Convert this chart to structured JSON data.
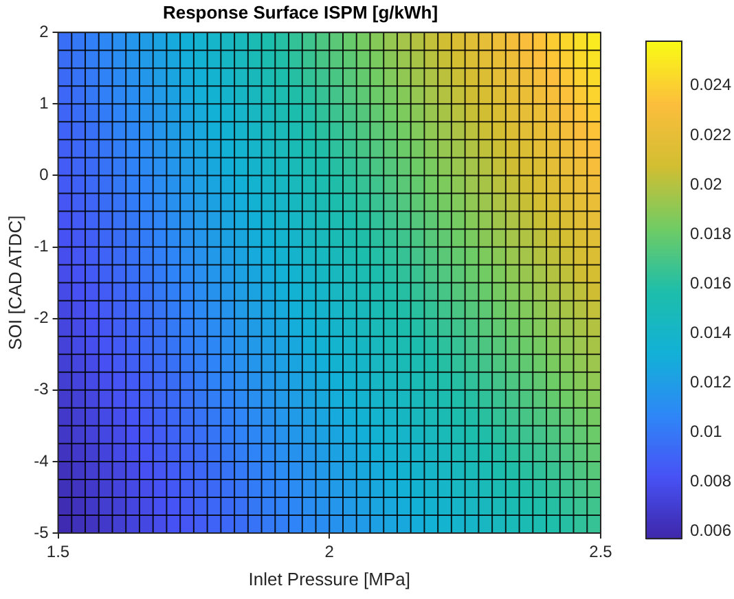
{
  "chart_data": {
    "type": "heatmap",
    "title": "Response Surface ISPM [g/kWh]",
    "xlabel": "Inlet Pressure [MPa]",
    "ylabel": "SOI [CAD ATDC]",
    "xlim": [
      1.5,
      2.5
    ],
    "xticks": [
      1.5,
      2,
      2.5
    ],
    "ylim": [
      -5,
      2
    ],
    "yticks": [
      -5,
      -4,
      -3,
      -2,
      -1,
      0,
      1,
      2
    ],
    "clim": [
      0.0057,
      0.0258
    ],
    "grid": true,
    "cticks": [
      0.006,
      0.008,
      0.01,
      0.012,
      0.014,
      0.016,
      0.018,
      0.02,
      0.022,
      0.024
    ],
    "cells": [
      [
        0.0096,
        0.01,
        0.0104,
        0.0108,
        0.0112,
        0.0116,
        0.012,
        0.0124,
        0.0128,
        0.0132,
        0.0136,
        0.014,
        0.0144,
        0.0148,
        0.0152,
        0.0156,
        0.016,
        0.0164,
        0.0168,
        0.0172,
        0.0176,
        0.018,
        0.0184,
        0.0188,
        0.0192,
        0.0196,
        0.02,
        0.0204,
        0.0208,
        0.0212,
        0.0216,
        0.022,
        0.0224,
        0.0228,
        0.0232,
        0.0235,
        0.0239,
        0.0243,
        0.0247,
        0.0251
      ],
      [
        0.0095,
        0.0099,
        0.0103,
        0.0107,
        0.0111,
        0.0115,
        0.0119,
        0.0122,
        0.0126,
        0.013,
        0.0134,
        0.0138,
        0.0142,
        0.0146,
        0.015,
        0.0154,
        0.0158,
        0.0162,
        0.0166,
        0.017,
        0.0174,
        0.0177,
        0.0181,
        0.0185,
        0.0189,
        0.0193,
        0.0197,
        0.0201,
        0.0205,
        0.0209,
        0.0213,
        0.0217,
        0.0221,
        0.0225,
        0.0229,
        0.0233,
        0.0236,
        0.024,
        0.0244,
        0.0248
      ],
      [
        0.0094,
        0.0098,
        0.0101,
        0.0105,
        0.0109,
        0.0113,
        0.0117,
        0.0121,
        0.0125,
        0.0129,
        0.0132,
        0.0136,
        0.014,
        0.0144,
        0.0148,
        0.0152,
        0.0156,
        0.016,
        0.0164,
        0.0167,
        0.0171,
        0.0175,
        0.0179,
        0.0183,
        0.0187,
        0.0191,
        0.0195,
        0.0198,
        0.0202,
        0.0206,
        0.021,
        0.0214,
        0.0218,
        0.0222,
        0.0226,
        0.023,
        0.0233,
        0.0237,
        0.0241,
        0.0245
      ],
      [
        0.0092,
        0.0096,
        0.01,
        0.0104,
        0.0108,
        0.0111,
        0.0115,
        0.0119,
        0.0123,
        0.0127,
        0.0131,
        0.0134,
        0.0138,
        0.0142,
        0.0146,
        0.015,
        0.0154,
        0.0158,
        0.0161,
        0.0165,
        0.0169,
        0.0173,
        0.0177,
        0.0181,
        0.0184,
        0.0188,
        0.0192,
        0.0196,
        0.02,
        0.0204,
        0.0207,
        0.0211,
        0.0215,
        0.0219,
        0.0223,
        0.0227,
        0.023,
        0.0234,
        0.0238,
        0.0242
      ],
      [
        0.0091,
        0.0095,
        0.0099,
        0.0102,
        0.0106,
        0.011,
        0.0114,
        0.0117,
        0.0121,
        0.0125,
        0.0129,
        0.0133,
        0.0136,
        0.014,
        0.0144,
        0.0148,
        0.0152,
        0.0155,
        0.0159,
        0.0163,
        0.0167,
        0.017,
        0.0174,
        0.0178,
        0.0182,
        0.0186,
        0.0189,
        0.0193,
        0.0197,
        0.0201,
        0.0205,
        0.0208,
        0.0212,
        0.0216,
        0.022,
        0.0223,
        0.0227,
        0.0231,
        0.0235,
        0.0239
      ],
      [
        0.009,
        0.0093,
        0.0097,
        0.0101,
        0.0105,
        0.0108,
        0.0112,
        0.0116,
        0.012,
        0.0123,
        0.0127,
        0.0131,
        0.0134,
        0.0138,
        0.0142,
        0.0146,
        0.0149,
        0.0153,
        0.0157,
        0.0161,
        0.0164,
        0.0168,
        0.0172,
        0.0176,
        0.0179,
        0.0183,
        0.0187,
        0.0191,
        0.0194,
        0.0198,
        0.0202,
        0.0206,
        0.0209,
        0.0213,
        0.0217,
        0.0221,
        0.0224,
        0.0228,
        0.0232,
        0.0235
      ],
      [
        0.0088,
        0.0092,
        0.0096,
        0.0099,
        0.0103,
        0.0107,
        0.011,
        0.0114,
        0.0118,
        0.0122,
        0.0125,
        0.0129,
        0.0133,
        0.0136,
        0.014,
        0.0144,
        0.0147,
        0.0151,
        0.0155,
        0.0158,
        0.0162,
        0.0166,
        0.017,
        0.0173,
        0.0177,
        0.0181,
        0.0184,
        0.0188,
        0.0192,
        0.0195,
        0.0199,
        0.0203,
        0.0206,
        0.021,
        0.0214,
        0.0218,
        0.0221,
        0.0225,
        0.0229,
        0.0232
      ],
      [
        0.0087,
        0.0091,
        0.0094,
        0.0098,
        0.0101,
        0.0105,
        0.0109,
        0.0112,
        0.0116,
        0.012,
        0.0123,
        0.0127,
        0.0131,
        0.0134,
        0.0138,
        0.0142,
        0.0145,
        0.0149,
        0.0153,
        0.0156,
        0.016,
        0.0163,
        0.0167,
        0.0171,
        0.0174,
        0.0178,
        0.0182,
        0.0185,
        0.0189,
        0.0193,
        0.0196,
        0.02,
        0.0204,
        0.0207,
        0.0211,
        0.0214,
        0.0218,
        0.0222,
        0.0225,
        0.0229
      ],
      [
        0.0086,
        0.0089,
        0.0093,
        0.0096,
        0.01,
        0.0104,
        0.0107,
        0.0111,
        0.0114,
        0.0118,
        0.0122,
        0.0125,
        0.0129,
        0.0132,
        0.0136,
        0.014,
        0.0143,
        0.0147,
        0.015,
        0.0154,
        0.0158,
        0.0161,
        0.0165,
        0.0168,
        0.0172,
        0.0176,
        0.0179,
        0.0183,
        0.0186,
        0.019,
        0.0194,
        0.0197,
        0.0201,
        0.0204,
        0.0208,
        0.0212,
        0.0215,
        0.0219,
        0.0222,
        0.0226
      ],
      [
        0.0084,
        0.0088,
        0.0091,
        0.0095,
        0.0098,
        0.0102,
        0.0106,
        0.0109,
        0.0113,
        0.0116,
        0.012,
        0.0123,
        0.0127,
        0.013,
        0.0134,
        0.0138,
        0.0141,
        0.0145,
        0.0148,
        0.0152,
        0.0155,
        0.0159,
        0.0162,
        0.0166,
        0.0169,
        0.0173,
        0.0177,
        0.018,
        0.0184,
        0.0187,
        0.0191,
        0.0194,
        0.0198,
        0.0201,
        0.0205,
        0.0209,
        0.0212,
        0.0216,
        0.0219,
        0.0223
      ],
      [
        0.0083,
        0.0086,
        0.009,
        0.0093,
        0.0097,
        0.01,
        0.0104,
        0.0107,
        0.0111,
        0.0114,
        0.0118,
        0.0121,
        0.0125,
        0.0128,
        0.0132,
        0.0135,
        0.0139,
        0.0142,
        0.0146,
        0.0149,
        0.0153,
        0.0156,
        0.016,
        0.0163,
        0.0167,
        0.017,
        0.0174,
        0.0177,
        0.0181,
        0.0184,
        0.0188,
        0.0191,
        0.0195,
        0.0198,
        0.0202,
        0.0205,
        0.0209,
        0.0212,
        0.0216,
        0.022
      ],
      [
        0.0082,
        0.0085,
        0.0088,
        0.0092,
        0.0095,
        0.0099,
        0.0102,
        0.0106,
        0.0109,
        0.0113,
        0.0116,
        0.012,
        0.0123,
        0.0126,
        0.013,
        0.0133,
        0.0137,
        0.014,
        0.0144,
        0.0147,
        0.0151,
        0.0154,
        0.0158,
        0.0161,
        0.0164,
        0.0168,
        0.0171,
        0.0175,
        0.0178,
        0.0182,
        0.0185,
        0.0189,
        0.0192,
        0.0196,
        0.0199,
        0.0202,
        0.0206,
        0.0209,
        0.0213,
        0.0216
      ],
      [
        0.008,
        0.0084,
        0.0087,
        0.009,
        0.0094,
        0.0097,
        0.0101,
        0.0104,
        0.0107,
        0.0111,
        0.0114,
        0.0118,
        0.0121,
        0.0124,
        0.0128,
        0.0131,
        0.0135,
        0.0138,
        0.0142,
        0.0145,
        0.0148,
        0.0152,
        0.0155,
        0.0159,
        0.0162,
        0.0165,
        0.0169,
        0.0172,
        0.0176,
        0.0179,
        0.0182,
        0.0186,
        0.0189,
        0.0193,
        0.0196,
        0.02,
        0.0203,
        0.0206,
        0.021,
        0.0213
      ],
      [
        0.0079,
        0.0082,
        0.0086,
        0.0089,
        0.0092,
        0.0096,
        0.0099,
        0.0102,
        0.0106,
        0.0109,
        0.0112,
        0.0116,
        0.0119,
        0.0123,
        0.0126,
        0.0129,
        0.0133,
        0.0136,
        0.0139,
        0.0143,
        0.0146,
        0.0149,
        0.0153,
        0.0156,
        0.016,
        0.0163,
        0.0166,
        0.017,
        0.0173,
        0.0176,
        0.018,
        0.0183,
        0.0186,
        0.019,
        0.0193,
        0.0196,
        0.02,
        0.0203,
        0.0207,
        0.021
      ],
      [
        0.0078,
        0.0081,
        0.0084,
        0.0087,
        0.0091,
        0.0094,
        0.0097,
        0.0101,
        0.0104,
        0.0107,
        0.0111,
        0.0114,
        0.0117,
        0.0121,
        0.0124,
        0.0127,
        0.0131,
        0.0134,
        0.0137,
        0.014,
        0.0144,
        0.0147,
        0.015,
        0.0154,
        0.0157,
        0.016,
        0.0164,
        0.0167,
        0.017,
        0.0174,
        0.0177,
        0.018,
        0.0184,
        0.0187,
        0.019,
        0.0193,
        0.0197,
        0.02,
        0.0203,
        0.0207
      ],
      [
        0.0076,
        0.0079,
        0.0083,
        0.0086,
        0.0089,
        0.0092,
        0.0096,
        0.0099,
        0.0102,
        0.0106,
        0.0109,
        0.0112,
        0.0115,
        0.0119,
        0.0122,
        0.0125,
        0.0128,
        0.0132,
        0.0135,
        0.0138,
        0.0141,
        0.0145,
        0.0148,
        0.0151,
        0.0155,
        0.0158,
        0.0161,
        0.0164,
        0.0168,
        0.0171,
        0.0174,
        0.0177,
        0.0181,
        0.0184,
        0.0187,
        0.019,
        0.0194,
        0.0197,
        0.02,
        0.0204
      ],
      [
        0.0075,
        0.0078,
        0.0081,
        0.0084,
        0.0088,
        0.0091,
        0.0094,
        0.0097,
        0.0101,
        0.0104,
        0.0107,
        0.011,
        0.0113,
        0.0117,
        0.012,
        0.0123,
        0.0126,
        0.013,
        0.0133,
        0.0136,
        0.0139,
        0.0142,
        0.0146,
        0.0149,
        0.0152,
        0.0155,
        0.0159,
        0.0162,
        0.0165,
        0.0168,
        0.0171,
        0.0175,
        0.0178,
        0.0181,
        0.0184,
        0.0187,
        0.0191,
        0.0194,
        0.0197,
        0.02
      ],
      [
        0.0073,
        0.0077,
        0.008,
        0.0083,
        0.0086,
        0.0089,
        0.0093,
        0.0096,
        0.0099,
        0.0102,
        0.0105,
        0.0108,
        0.0112,
        0.0115,
        0.0118,
        0.0121,
        0.0124,
        0.0127,
        0.0131,
        0.0134,
        0.0137,
        0.014,
        0.0143,
        0.0146,
        0.015,
        0.0153,
        0.0156,
        0.0159,
        0.0162,
        0.0165,
        0.0169,
        0.0172,
        0.0175,
        0.0178,
        0.0181,
        0.0184,
        0.0188,
        0.0191,
        0.0194,
        0.0197
      ],
      [
        0.0072,
        0.0075,
        0.0078,
        0.0081,
        0.0085,
        0.0088,
        0.0091,
        0.0094,
        0.0097,
        0.01,
        0.0103,
        0.0106,
        0.011,
        0.0113,
        0.0116,
        0.0119,
        0.0122,
        0.0125,
        0.0128,
        0.0131,
        0.0135,
        0.0138,
        0.0141,
        0.0144,
        0.0147,
        0.015,
        0.0153,
        0.0156,
        0.016,
        0.0163,
        0.0166,
        0.0169,
        0.0172,
        0.0175,
        0.0178,
        0.0181,
        0.0185,
        0.0188,
        0.0191,
        0.0194
      ],
      [
        0.0071,
        0.0074,
        0.0077,
        0.008,
        0.0083,
        0.0086,
        0.0089,
        0.0092,
        0.0095,
        0.0098,
        0.0102,
        0.0105,
        0.0108,
        0.0111,
        0.0114,
        0.0117,
        0.012,
        0.0123,
        0.0126,
        0.0129,
        0.0132,
        0.0135,
        0.0138,
        0.0142,
        0.0145,
        0.0148,
        0.0151,
        0.0154,
        0.0157,
        0.016,
        0.0163,
        0.0166,
        0.0169,
        0.0172,
        0.0175,
        0.0178,
        0.0182,
        0.0185,
        0.0188,
        0.0191
      ],
      [
        0.0069,
        0.0072,
        0.0075,
        0.0079,
        0.0082,
        0.0085,
        0.0088,
        0.0091,
        0.0094,
        0.0097,
        0.01,
        0.0103,
        0.0106,
        0.0109,
        0.0112,
        0.0115,
        0.0118,
        0.0121,
        0.0124,
        0.0127,
        0.013,
        0.0133,
        0.0136,
        0.0139,
        0.0142,
        0.0145,
        0.0148,
        0.0151,
        0.0154,
        0.0157,
        0.016,
        0.0163,
        0.0166,
        0.0169,
        0.0172,
        0.0175,
        0.0179,
        0.0182,
        0.0185,
        0.0188
      ],
      [
        0.0068,
        0.0071,
        0.0074,
        0.0077,
        0.008,
        0.0083,
        0.0086,
        0.0089,
        0.0092,
        0.0095,
        0.0098,
        0.0101,
        0.0104,
        0.0107,
        0.011,
        0.0113,
        0.0116,
        0.0119,
        0.0122,
        0.0125,
        0.0128,
        0.0131,
        0.0134,
        0.0137,
        0.014,
        0.0143,
        0.0146,
        0.0149,
        0.0152,
        0.0155,
        0.0158,
        0.0161,
        0.0164,
        0.0167,
        0.017,
        0.0172,
        0.0175,
        0.0178,
        0.0181,
        0.0184
      ],
      [
        0.0067,
        0.007,
        0.0073,
        0.0076,
        0.0078,
        0.0081,
        0.0084,
        0.0087,
        0.009,
        0.0093,
        0.0096,
        0.0099,
        0.0102,
        0.0105,
        0.0108,
        0.0111,
        0.0114,
        0.0117,
        0.012,
        0.0123,
        0.0125,
        0.0128,
        0.0131,
        0.0134,
        0.0137,
        0.014,
        0.0143,
        0.0146,
        0.0149,
        0.0152,
        0.0155,
        0.0158,
        0.0161,
        0.0164,
        0.0167,
        0.0169,
        0.0172,
        0.0175,
        0.0178,
        0.0181
      ],
      [
        0.0065,
        0.0068,
        0.0071,
        0.0074,
        0.0077,
        0.008,
        0.0083,
        0.0086,
        0.0088,
        0.0091,
        0.0094,
        0.0097,
        0.01,
        0.0103,
        0.0106,
        0.0109,
        0.0112,
        0.0114,
        0.0117,
        0.012,
        0.0123,
        0.0126,
        0.0129,
        0.0132,
        0.0135,
        0.0138,
        0.014,
        0.0143,
        0.0146,
        0.0149,
        0.0152,
        0.0155,
        0.0158,
        0.0161,
        0.0164,
        0.0166,
        0.0169,
        0.0172,
        0.0175,
        0.0178
      ],
      [
        0.0064,
        0.0067,
        0.007,
        0.0073,
        0.0075,
        0.0078,
        0.0081,
        0.0084,
        0.0087,
        0.009,
        0.0092,
        0.0095,
        0.0098,
        0.0101,
        0.0104,
        0.0107,
        0.011,
        0.0112,
        0.0115,
        0.0118,
        0.0121,
        0.0124,
        0.0127,
        0.0129,
        0.0132,
        0.0135,
        0.0138,
        0.0141,
        0.0144,
        0.0146,
        0.0149,
        0.0152,
        0.0155,
        0.0158,
        0.0161,
        0.0163,
        0.0166,
        0.0169,
        0.0172,
        0.0175
      ],
      [
        0.0063,
        0.0065,
        0.0068,
        0.0071,
        0.0074,
        0.0077,
        0.0079,
        0.0082,
        0.0085,
        0.0088,
        0.0091,
        0.0093,
        0.0096,
        0.0099,
        0.0102,
        0.0105,
        0.0107,
        0.011,
        0.0113,
        0.0116,
        0.0119,
        0.0121,
        0.0124,
        0.0127,
        0.013,
        0.0133,
        0.0135,
        0.0138,
        0.0141,
        0.0144,
        0.0146,
        0.0149,
        0.0152,
        0.0155,
        0.0158,
        0.016,
        0.0163,
        0.0166,
        0.0169,
        0.0172
      ],
      [
        0.0061,
        0.0064,
        0.0067,
        0.007,
        0.0072,
        0.0075,
        0.0078,
        0.0081,
        0.0083,
        0.0086,
        0.0089,
        0.0092,
        0.0094,
        0.0097,
        0.01,
        0.0103,
        0.0105,
        0.0108,
        0.0111,
        0.0114,
        0.0116,
        0.0119,
        0.0122,
        0.0125,
        0.0127,
        0.013,
        0.0133,
        0.0135,
        0.0138,
        0.0141,
        0.0144,
        0.0146,
        0.0149,
        0.0152,
        0.0155,
        0.0157,
        0.016,
        0.0163,
        0.0166,
        0.0168
      ],
      [
        0.006,
        0.0063,
        0.0065,
        0.0068,
        0.0071,
        0.0074,
        0.0076,
        0.0079,
        0.0082,
        0.0084,
        0.0087,
        0.009,
        0.0092,
        0.0095,
        0.0098,
        0.0101,
        0.0103,
        0.0106,
        0.0109,
        0.0111,
        0.0114,
        0.0117,
        0.0119,
        0.0122,
        0.0125,
        0.0127,
        0.013,
        0.0133,
        0.0136,
        0.0138,
        0.0141,
        0.0144,
        0.0146,
        0.0149,
        0.0152,
        0.0154,
        0.0157,
        0.016,
        0.0163,
        0.0165
      ]
    ]
  }
}
